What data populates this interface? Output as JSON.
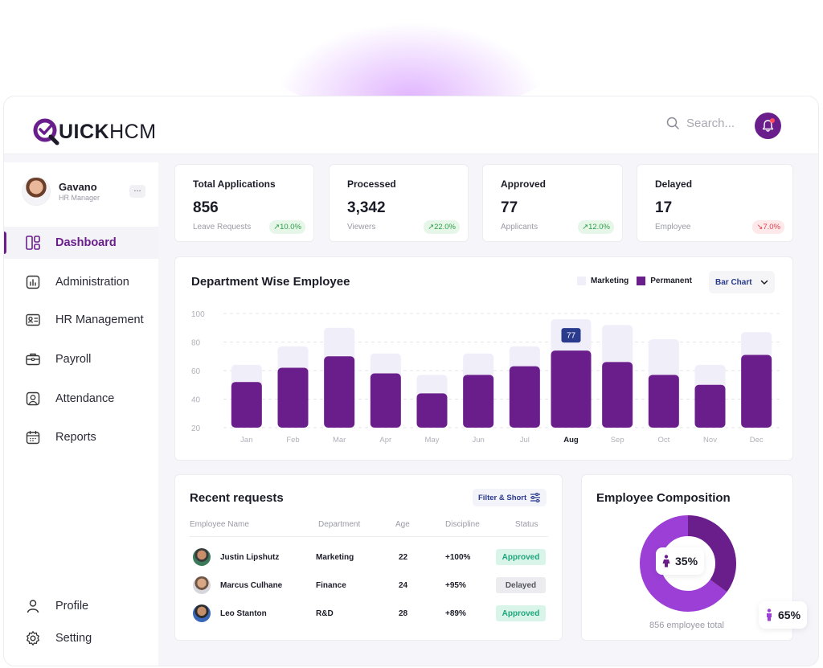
{
  "brand": {
    "logo_q": "Q",
    "logo_bold": "UICK",
    "logo_thin": "HCM"
  },
  "search": {
    "placeholder": "Search..."
  },
  "user": {
    "name": "Gavano",
    "role": "HR Manager",
    "menu": "..."
  },
  "nav": {
    "items": [
      {
        "label": "Dashboard",
        "icon": "dashboard-icon",
        "active": true
      },
      {
        "label": "Administration",
        "icon": "chart-icon"
      },
      {
        "label": "HR Management",
        "icon": "id-card-icon"
      },
      {
        "label": "Payroll",
        "icon": "briefcase-icon"
      },
      {
        "label": "Attendance",
        "icon": "user-square-icon"
      },
      {
        "label": "Reports",
        "icon": "calendar-icon"
      }
    ],
    "bottom": [
      {
        "label": "Profile",
        "icon": "profile-icon"
      },
      {
        "label": "Setting",
        "icon": "gear-icon"
      }
    ]
  },
  "stats": [
    {
      "title": "Total Applications",
      "value": "856",
      "sub": "Leave Requests",
      "badge": "10.0%",
      "trend": "up"
    },
    {
      "title": "Processed",
      "value": "3,342",
      "sub": "Viewers",
      "badge": "22.0%",
      "trend": "up"
    },
    {
      "title": "Approved",
      "value": "77",
      "sub": "Applicants",
      "badge": "12.0%",
      "trend": "up"
    },
    {
      "title": "Delayed",
      "value": "17",
      "sub": "Employee",
      "badge": "7.0%",
      "trend": "down"
    }
  ],
  "department_chart": {
    "title": "Department Wise Employee",
    "legend_marketing": "Marketing",
    "legend_permanent": "Permanent",
    "dropdown": "Bar Chart",
    "tooltip": "77"
  },
  "chart_data": {
    "type": "bar",
    "title": "Department Wise Employee",
    "categories": [
      "Jan",
      "Feb",
      "Mar",
      "Apr",
      "May",
      "Jun",
      "Jul",
      "Aug",
      "Sep",
      "Oct",
      "Nov",
      "Dec"
    ],
    "highlight": "Aug",
    "y_ticks": [
      100,
      80,
      60,
      40,
      20
    ],
    "ylim": [
      20,
      100
    ],
    "series": [
      {
        "name": "Marketing",
        "color": "#f0eef9",
        "values": [
          64,
          77,
          90,
          72,
          57,
          72,
          77,
          96,
          92,
          82,
          64,
          87
        ]
      },
      {
        "name": "Permanent",
        "color": "#6a1e8c",
        "values": [
          52,
          62,
          70,
          58,
          44,
          57,
          63,
          74,
          66,
          57,
          50,
          71
        ]
      }
    ],
    "legend_position": "top-right",
    "grid": true
  },
  "requests": {
    "title": "Recent requests",
    "filter": "Filter & Short",
    "columns": [
      "Employee Name",
      "Department",
      "Age",
      "Discipline",
      "Status"
    ],
    "rows": [
      {
        "name": "Justin Lipshutz",
        "department": "Marketing",
        "age": "22",
        "discipline": "+100%",
        "status": "Approved"
      },
      {
        "name": "Marcus Culhane",
        "department": "Finance",
        "age": "24",
        "discipline": "+95%",
        "status": "Delayed"
      },
      {
        "name": "Leo Stanton",
        "department": "R&D",
        "age": "28",
        "discipline": "+89%",
        "status": "Approved"
      }
    ]
  },
  "composition": {
    "title": "Employee Composition",
    "female_pct": "35%",
    "male_pct": "65%",
    "female_value": 35,
    "total": "856 employee total",
    "colors": {
      "female": "#6a1e8c",
      "male": "#9b3fd6"
    }
  },
  "colors": {
    "accent": "#6a1e8c",
    "badge_up": "#2f9e47",
    "badge_down": "#e0414f"
  }
}
